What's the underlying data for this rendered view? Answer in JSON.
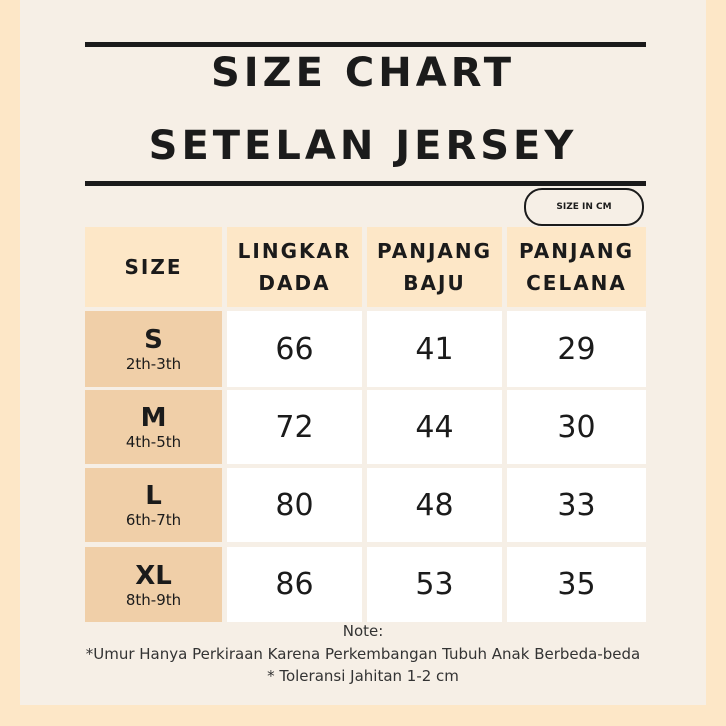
{
  "title_line1": "SIZE CHART",
  "title_line2": "SETELAN JERSEY",
  "unit_badge": "SIZE IN CM",
  "colors": {
    "border": "#fde7c7",
    "background": "#f6efe6",
    "header": "#fde7c7",
    "size_column": "#f0cfa8",
    "cells": "#ffffff"
  },
  "table": {
    "headers": [
      "SIZE",
      "LINGKAR\nDADA",
      "PANJANG\nBAJU",
      "PANJANG\nCELANA"
    ],
    "rows": [
      {
        "size": "S",
        "age": "2th-3th",
        "values": [
          "66",
          "41",
          "29"
        ]
      },
      {
        "size": "M",
        "age": "4th-5th",
        "values": [
          "72",
          "44",
          "30"
        ]
      },
      {
        "size": "L",
        "age": "6th-7th",
        "values": [
          "80",
          "48",
          "33"
        ]
      },
      {
        "size": "XL",
        "age": "8th-9th",
        "values": [
          "86",
          "53",
          "35"
        ]
      }
    ]
  },
  "notes": {
    "label": "Note:",
    "line1": "*Umur Hanya Perkiraan Karena Perkembangan Tubuh Anak Berbeda-beda",
    "line2": "* Toleransi Jahitan 1-2 cm"
  }
}
